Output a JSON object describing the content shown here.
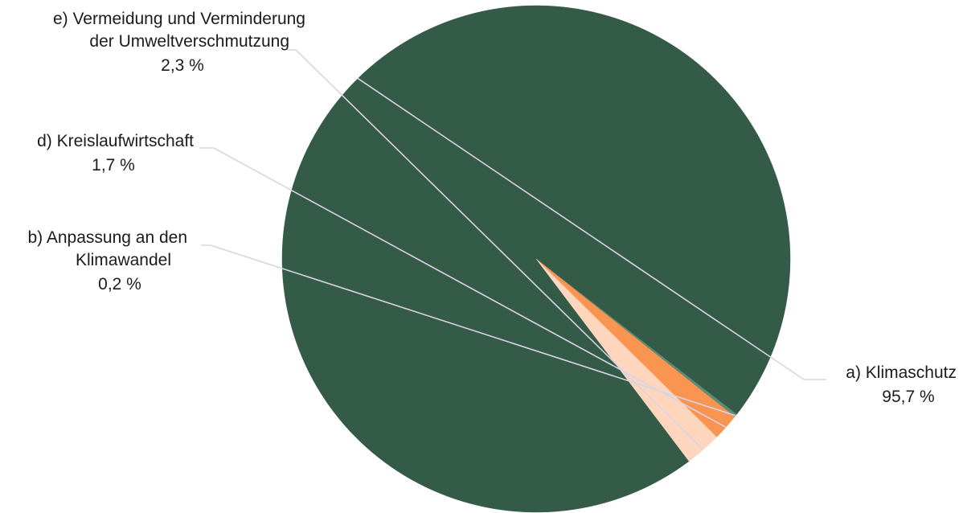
{
  "chart_data": {
    "type": "pie",
    "slices": [
      {
        "key": "a",
        "label": "a) Klimaschutz",
        "value": 95.7,
        "value_label": "95,7 %",
        "color": "#345b47"
      },
      {
        "key": "b",
        "label": "b) Anpassung an den Klimawandel",
        "label_lines": [
          "b) Anpassung an den",
          "Klimawandel"
        ],
        "value": 0.2,
        "value_label": "0,2 %",
        "color": "#5f8a74"
      },
      {
        "key": "d",
        "label": "d) Kreislaufwirtschaft",
        "value": 1.7,
        "value_label": "1,7 %",
        "color": "#f99550"
      },
      {
        "key": "e",
        "label": "e) Vermeidung und Verminderung der Umweltverschmutzung",
        "label_lines": [
          "e) Vermeidung und Verminderung",
          "der Umweltverschmutzung"
        ],
        "value": 2.3,
        "value_label": "2,3 %",
        "color": "#fdd6bd"
      }
    ],
    "legend": "none",
    "leader_line_color": "#d9d3e6"
  }
}
